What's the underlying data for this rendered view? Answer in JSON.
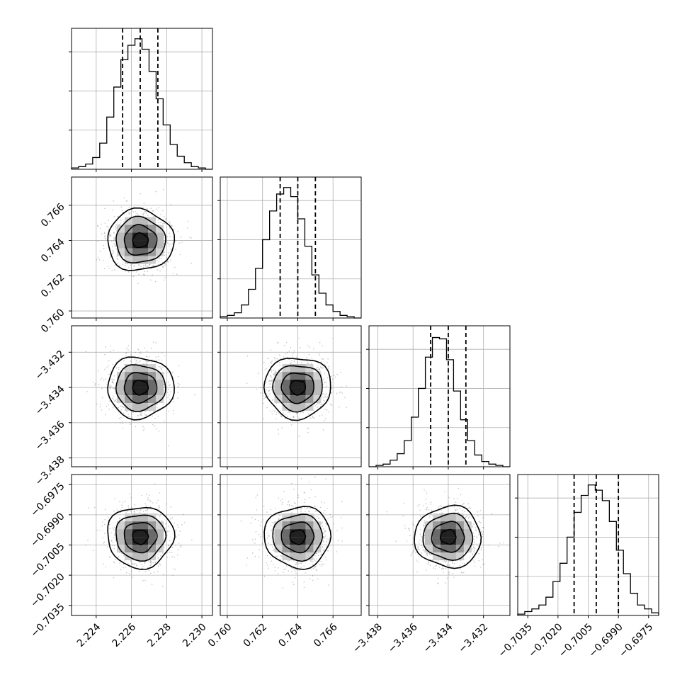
{
  "chart_data": {
    "type": "corner",
    "parameters": [
      {
        "range": [
          2.2226,
          2.2306
        ],
        "ticks": [
          2.224,
          2.226,
          2.228,
          2.23
        ],
        "tick_labels": [
          "2.224",
          "2.226",
          "2.228",
          "2.230"
        ],
        "quantiles": [
          2.2255,
          2.2265,
          2.2275
        ],
        "hist_counts": [
          1,
          2,
          4,
          9,
          20,
          40,
          63,
          84,
          95,
          100,
          92,
          75,
          54,
          34,
          19,
          10,
          5,
          2,
          1,
          0
        ]
      },
      {
        "range": [
          0.7596,
          0.7676
        ],
        "ticks": [
          0.76,
          0.762,
          0.764,
          0.766
        ],
        "tick_labels": [
          "0.760",
          "0.762",
          "0.764",
          "0.766"
        ],
        "quantiles": [
          0.763,
          0.764,
          0.765
        ],
        "hist_counts": [
          1,
          2,
          4,
          10,
          22,
          38,
          60,
          82,
          95,
          100,
          93,
          76,
          55,
          33,
          19,
          10,
          5,
          2,
          1,
          0
        ]
      },
      {
        "range": [
          -3.4385,
          -3.4305
        ],
        "ticks": [
          -3.438,
          -3.436,
          -3.434,
          -3.432
        ],
        "tick_labels": [
          "−3.438",
          "−3.436",
          "−3.434",
          "−3.432"
        ],
        "quantiles": [
          -3.435,
          -3.434,
          -3.433
        ],
        "hist_counts": [
          0,
          1,
          2,
          5,
          10,
          20,
          38,
          60,
          84,
          99,
          98,
          82,
          58,
          36,
          20,
          9,
          4,
          2,
          1,
          0
        ]
      },
      {
        "range": [
          -0.704,
          -0.697
        ],
        "ticks": [
          -0.7035,
          -0.702,
          -0.7005,
          -0.699,
          -0.6975
        ],
        "tick_labels": [
          "−0.7035",
          "−0.7020",
          "−0.7005",
          "−0.6990",
          "−0.6975"
        ],
        "quantiles": [
          -0.7012,
          -0.7001,
          -0.699
        ],
        "hist_counts": [
          1,
          3,
          5,
          8,
          14,
          26,
          40,
          60,
          79,
          92,
          100,
          96,
          88,
          72,
          50,
          32,
          17,
          8,
          5,
          2
        ]
      }
    ],
    "contour_levels": [
      "0.5-sigma",
      "1-sigma",
      "1.5-sigma",
      "2-sigma"
    ],
    "grid": true,
    "title": "",
    "xlabel": "",
    "ylabel": "",
    "colors": {
      "line": "#000000",
      "grid": "#b0b0b0",
      "points": "#7f7f7f"
    }
  }
}
